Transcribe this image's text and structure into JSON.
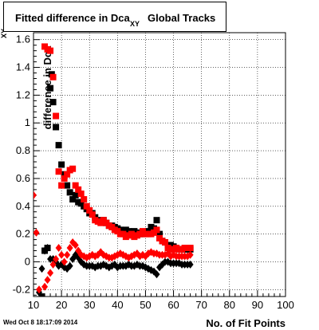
{
  "chart_data": {
    "type": "scatter",
    "title": {
      "main": "Fitted difference in Dca",
      "subscript": "XY",
      "rest": "Global Tracks"
    },
    "ylabel": "difference in Dca",
    "ylabel_sub": "XY",
    "xlabel": "No. of Fit Points",
    "timestamp": "Wed Oct  8 18:17:09 2014",
    "xlim": [
      10,
      100
    ],
    "ylim": [
      -0.25,
      1.65
    ],
    "grid": true,
    "x_ticks": [
      10,
      20,
      30,
      40,
      50,
      60,
      70,
      80,
      90,
      100
    ],
    "y_ticks": [
      -0.2,
      0,
      0.2,
      0.4,
      0.6,
      0.8,
      1,
      1.2,
      1.4,
      1.6
    ],
    "colors": {
      "black_series": "#000000",
      "red_series": "#ff0000"
    },
    "series": [
      {
        "marker": "square",
        "color": "#000000",
        "points": [
          [
            13,
            -0.25
          ],
          [
            14,
            0.08
          ],
          [
            15,
            0.1
          ],
          [
            16,
            1.25
          ],
          [
            16.5,
            1.35
          ],
          [
            17,
            1.15
          ],
          [
            18,
            0.97
          ],
          [
            19,
            0.84
          ],
          [
            20,
            0.7
          ],
          [
            21,
            0.63
          ],
          [
            22,
            0.55
          ],
          [
            23,
            0.5
          ],
          [
            24,
            0.45
          ],
          [
            25,
            0.48
          ],
          [
            26,
            0.43
          ],
          [
            27,
            0.42
          ],
          [
            28,
            0.4
          ],
          [
            29,
            0.38
          ],
          [
            30,
            0.35
          ],
          [
            31,
            0.35
          ],
          [
            32,
            0.32
          ],
          [
            33,
            0.3
          ],
          [
            34,
            0.29
          ],
          [
            35,
            0.3
          ],
          [
            36,
            0.28
          ],
          [
            37,
            0.26
          ],
          [
            38,
            0.26
          ],
          [
            39,
            0.25
          ],
          [
            40,
            0.24
          ],
          [
            41,
            0.23
          ],
          [
            42,
            0.22
          ],
          [
            43,
            0.23
          ],
          [
            44,
            0.22
          ],
          [
            45,
            0.21
          ],
          [
            46,
            0.22
          ],
          [
            47,
            0.21
          ],
          [
            48,
            0.2
          ],
          [
            49,
            0.2
          ],
          [
            50,
            0.21
          ],
          [
            51,
            0.22
          ],
          [
            52,
            0.25
          ],
          [
            53,
            0.24
          ],
          [
            54,
            0.3
          ],
          [
            55,
            0.2
          ],
          [
            56,
            0.15
          ],
          [
            57,
            0.14
          ],
          [
            58,
            0.12
          ],
          [
            59,
            0.12
          ],
          [
            60,
            0.11
          ],
          [
            61,
            0.1
          ],
          [
            62,
            0.09
          ],
          [
            63,
            0.09
          ],
          [
            64,
            0.09
          ],
          [
            65,
            0.09
          ],
          [
            66,
            0.09
          ]
        ]
      },
      {
        "marker": "square",
        "color": "#ff0000",
        "points": [
          [
            14,
            1.55
          ],
          [
            15,
            1.53
          ],
          [
            16,
            1.52
          ],
          [
            17,
            1.33
          ],
          [
            18,
            1.05
          ],
          [
            19,
            0.65
          ],
          [
            20,
            0.55
          ],
          [
            21,
            0.6
          ],
          [
            22,
            0.63
          ],
          [
            23,
            0.66
          ],
          [
            24,
            0.67
          ],
          [
            25,
            0.55
          ],
          [
            26,
            0.52
          ],
          [
            27,
            0.49
          ],
          [
            28,
            0.45
          ],
          [
            29,
            0.4
          ],
          [
            30,
            0.37
          ],
          [
            31,
            0.34
          ],
          [
            32,
            0.3
          ],
          [
            33,
            0.29
          ],
          [
            34,
            0.28
          ],
          [
            35,
            0.3
          ],
          [
            36,
            0.28
          ],
          [
            37,
            0.26
          ],
          [
            38,
            0.25
          ],
          [
            39,
            0.23
          ],
          [
            40,
            0.22
          ],
          [
            41,
            0.2
          ],
          [
            42,
            0.2
          ],
          [
            43,
            0.18
          ],
          [
            44,
            0.19
          ],
          [
            45,
            0.2
          ],
          [
            46,
            0.18
          ],
          [
            47,
            0.19
          ],
          [
            48,
            0.2
          ],
          [
            49,
            0.22
          ],
          [
            50,
            0.2
          ],
          [
            51,
            0.2
          ],
          [
            52,
            0.2
          ],
          [
            53,
            0.21
          ],
          [
            54,
            0.23
          ],
          [
            55,
            0.17
          ],
          [
            56,
            0.15
          ],
          [
            57,
            0.14
          ],
          [
            58,
            0.1
          ],
          [
            59,
            0.09
          ],
          [
            60,
            0.09
          ],
          [
            61,
            0.1
          ],
          [
            62,
            0.09
          ],
          [
            63,
            0.09
          ],
          [
            64,
            0.1
          ],
          [
            65,
            0.1
          ],
          [
            66,
            0.1
          ]
        ]
      },
      {
        "marker": "diamond",
        "color": "#000000",
        "points": [
          [
            12,
            -0.22
          ],
          [
            13,
            -0.05
          ],
          [
            14,
            0.08
          ],
          [
            15,
            0.1
          ],
          [
            16,
            0.02
          ],
          [
            17,
            0.02
          ],
          [
            18,
            0
          ],
          [
            19,
            -0.03
          ],
          [
            20,
            -0.02
          ],
          [
            21,
            -0.04
          ],
          [
            22,
            -0.05
          ],
          [
            23,
            -0.03
          ],
          [
            24,
            0.02
          ],
          [
            25,
            0.05
          ],
          [
            26,
            0.03
          ],
          [
            27,
            0
          ],
          [
            28,
            -0.02
          ],
          [
            29,
            -0.03
          ],
          [
            30,
            -0.03
          ],
          [
            31,
            -0.03
          ],
          [
            32,
            -0.04
          ],
          [
            33,
            -0.03
          ],
          [
            34,
            -0.03
          ],
          [
            35,
            -0.02
          ],
          [
            36,
            -0.03
          ],
          [
            37,
            -0.04
          ],
          [
            38,
            -0.03
          ],
          [
            39,
            -0.02
          ],
          [
            40,
            -0.04
          ],
          [
            41,
            -0.03
          ],
          [
            42,
            -0.03
          ],
          [
            43,
            -0.03
          ],
          [
            44,
            -0.02
          ],
          [
            45,
            -0.03
          ],
          [
            46,
            -0.03
          ],
          [
            47,
            -0.02
          ],
          [
            48,
            -0.03
          ],
          [
            49,
            -0.03
          ],
          [
            50,
            -0.04
          ],
          [
            51,
            -0.05
          ],
          [
            52,
            -0.06
          ],
          [
            53,
            -0.07
          ],
          [
            54,
            -0.09
          ],
          [
            55,
            -0.04
          ],
          [
            56,
            -0.02
          ],
          [
            57,
            0
          ],
          [
            58,
            0
          ],
          [
            59,
            -0.01
          ],
          [
            60,
            -0.01
          ],
          [
            61,
            -0.01
          ],
          [
            62,
            -0.01
          ],
          [
            63,
            -0.02
          ],
          [
            64,
            -0.02
          ],
          [
            65,
            -0.02
          ],
          [
            66,
            -0.02
          ]
        ]
      },
      {
        "marker": "diamond",
        "color": "#ff0000",
        "points": [
          [
            10,
            0.48
          ],
          [
            11,
            0.21
          ],
          [
            12,
            -0.2
          ],
          [
            13,
            -0.28
          ],
          [
            14,
            -0.18
          ],
          [
            15,
            -0.13
          ],
          [
            16,
            -0.08
          ],
          [
            17,
            -0.02
          ],
          [
            18,
            0.02
          ],
          [
            19,
            0.1
          ],
          [
            20,
            0.05
          ],
          [
            21,
            0
          ],
          [
            22,
            0.05
          ],
          [
            23,
            0.1
          ],
          [
            24,
            0.14
          ],
          [
            25,
            0.12
          ],
          [
            26,
            0.08
          ],
          [
            27,
            0.05
          ],
          [
            28,
            0.04
          ],
          [
            29,
            0.03
          ],
          [
            30,
            0.04
          ],
          [
            31,
            0.05
          ],
          [
            32,
            0.04
          ],
          [
            33,
            0.05
          ],
          [
            34,
            0.07
          ],
          [
            35,
            0.05
          ],
          [
            36,
            0.04
          ],
          [
            37,
            0.03
          ],
          [
            38,
            0.03
          ],
          [
            39,
            0.04
          ],
          [
            40,
            0.05
          ],
          [
            41,
            0.06
          ],
          [
            42,
            0.05
          ],
          [
            43,
            0.04
          ],
          [
            44,
            0.03
          ],
          [
            45,
            0.04
          ],
          [
            46,
            0.05
          ],
          [
            47,
            0.06
          ],
          [
            48,
            0.04
          ],
          [
            49,
            0.05
          ],
          [
            50,
            0.04
          ],
          [
            51,
            0.06
          ],
          [
            52,
            0.07
          ],
          [
            53,
            0.06
          ],
          [
            54,
            0.06
          ],
          [
            55,
            0.05
          ],
          [
            56,
            0.05
          ],
          [
            57,
            0.05
          ],
          [
            58,
            0.06
          ],
          [
            59,
            0.04
          ],
          [
            60,
            0.05
          ],
          [
            61,
            0.04
          ],
          [
            62,
            0.04
          ],
          [
            63,
            0.04
          ],
          [
            64,
            0.04
          ],
          [
            65,
            0.04
          ],
          [
            66,
            0.05
          ]
        ]
      }
    ]
  }
}
